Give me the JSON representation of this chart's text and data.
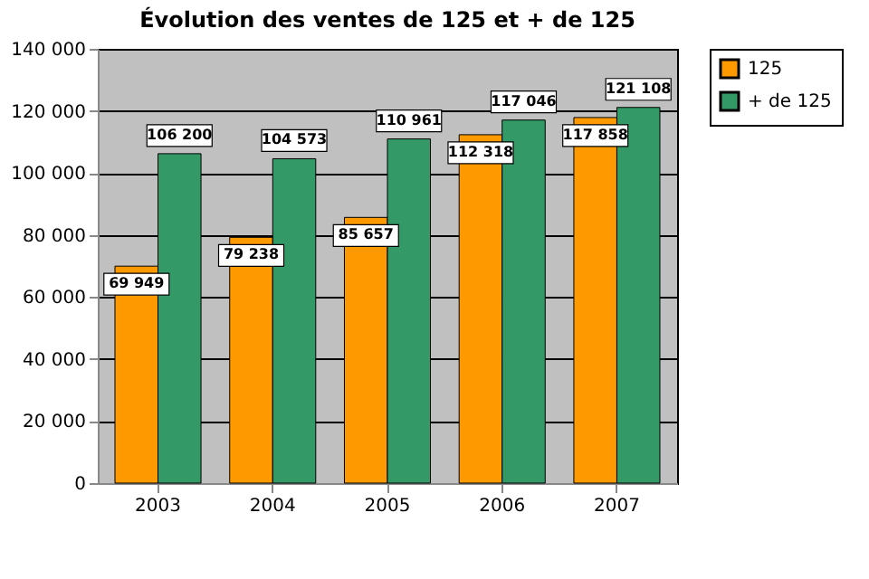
{
  "chart_data": {
    "type": "bar",
    "title": "Évolution des ventes de 125 et + de 125",
    "categories": [
      "2003",
      "2004",
      "2005",
      "2006",
      "2007"
    ],
    "series": [
      {
        "name": "125",
        "color": "#ff9900",
        "values": [
          69949,
          79238,
          85657,
          112318,
          117858
        ],
        "value_labels": [
          "69 949",
          "79 238",
          "85 657",
          "112 318",
          "117 858"
        ]
      },
      {
        "name": "+ de 125",
        "color": "#339966",
        "values": [
          106200,
          104573,
          110961,
          117046,
          121108
        ],
        "value_labels": [
          "106 200",
          "104 573",
          "110 961",
          "117 046",
          "121 108"
        ]
      }
    ],
    "ylim": [
      0,
      140000
    ],
    "yticks": [
      0,
      {
        "value": 20000,
        "label": "20 000"
      },
      {
        "value": 40000,
        "label": "40 000"
      },
      {
        "value": 60000,
        "label": "60 000"
      },
      {
        "value": 80000,
        "label": "80 000"
      },
      {
        "value": 100000,
        "label": "100 000"
      },
      {
        "value": 120000,
        "label": "120 000"
      },
      {
        "value": 140000,
        "label": "140 000"
      }
    ],
    "grid": "y",
    "legend": "right"
  }
}
